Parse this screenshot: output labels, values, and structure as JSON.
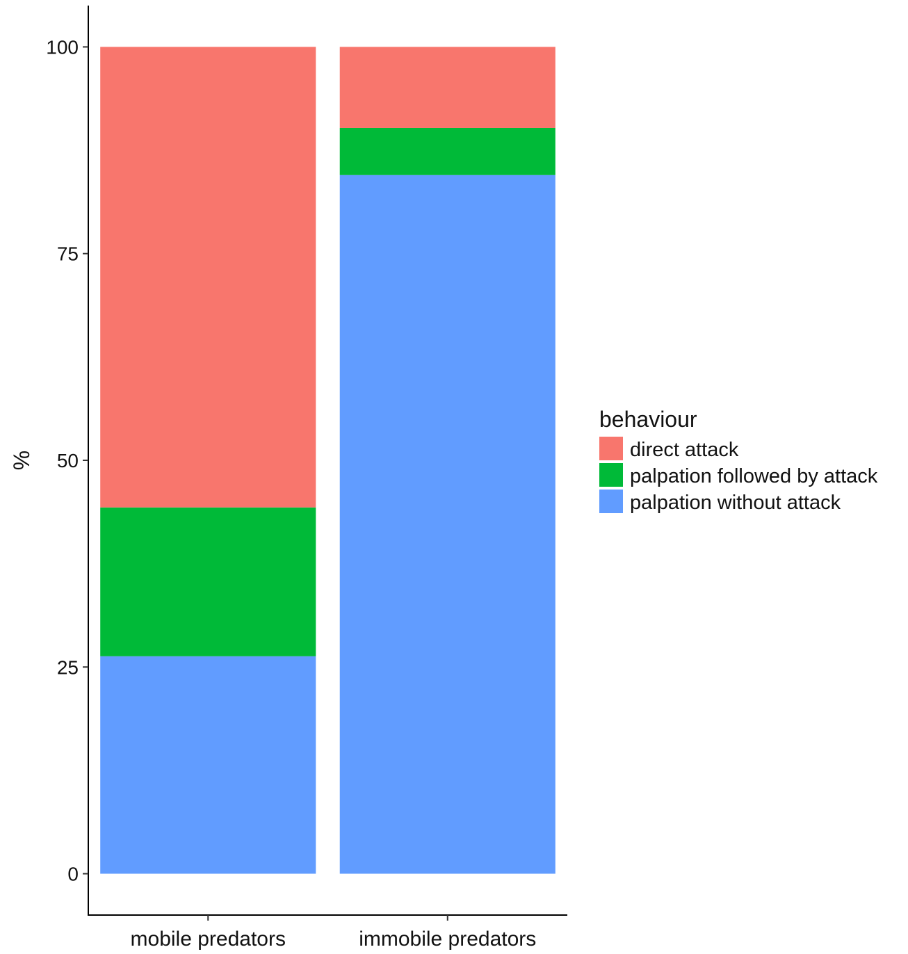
{
  "chart_data": {
    "type": "bar",
    "stacked": true,
    "categories": [
      "mobile predators",
      "immobile predators"
    ],
    "series": [
      {
        "name": "palpation without attack",
        "color": "#619CFF",
        "values": [
          26.3,
          84.5
        ]
      },
      {
        "name": "palpation followed by attack",
        "color": "#00BA38",
        "values": [
          18.0,
          5.7
        ]
      },
      {
        "name": "direct attack",
        "color": "#F8766D",
        "values": [
          55.7,
          9.8
        ]
      }
    ],
    "xlabel": "",
    "ylabel": "%",
    "ylim": [
      -5,
      105
    ],
    "yticks": [
      0,
      25,
      50,
      75,
      100
    ],
    "grid": false,
    "legend": {
      "title": "behaviour",
      "placement": "right",
      "entries": [
        {
          "label": "direct attack",
          "color": "#F8766D"
        },
        {
          "label": "palpation followed by attack",
          "color": "#00BA38"
        },
        {
          "label": "palpation without attack",
          "color": "#619CFF"
        }
      ]
    }
  }
}
